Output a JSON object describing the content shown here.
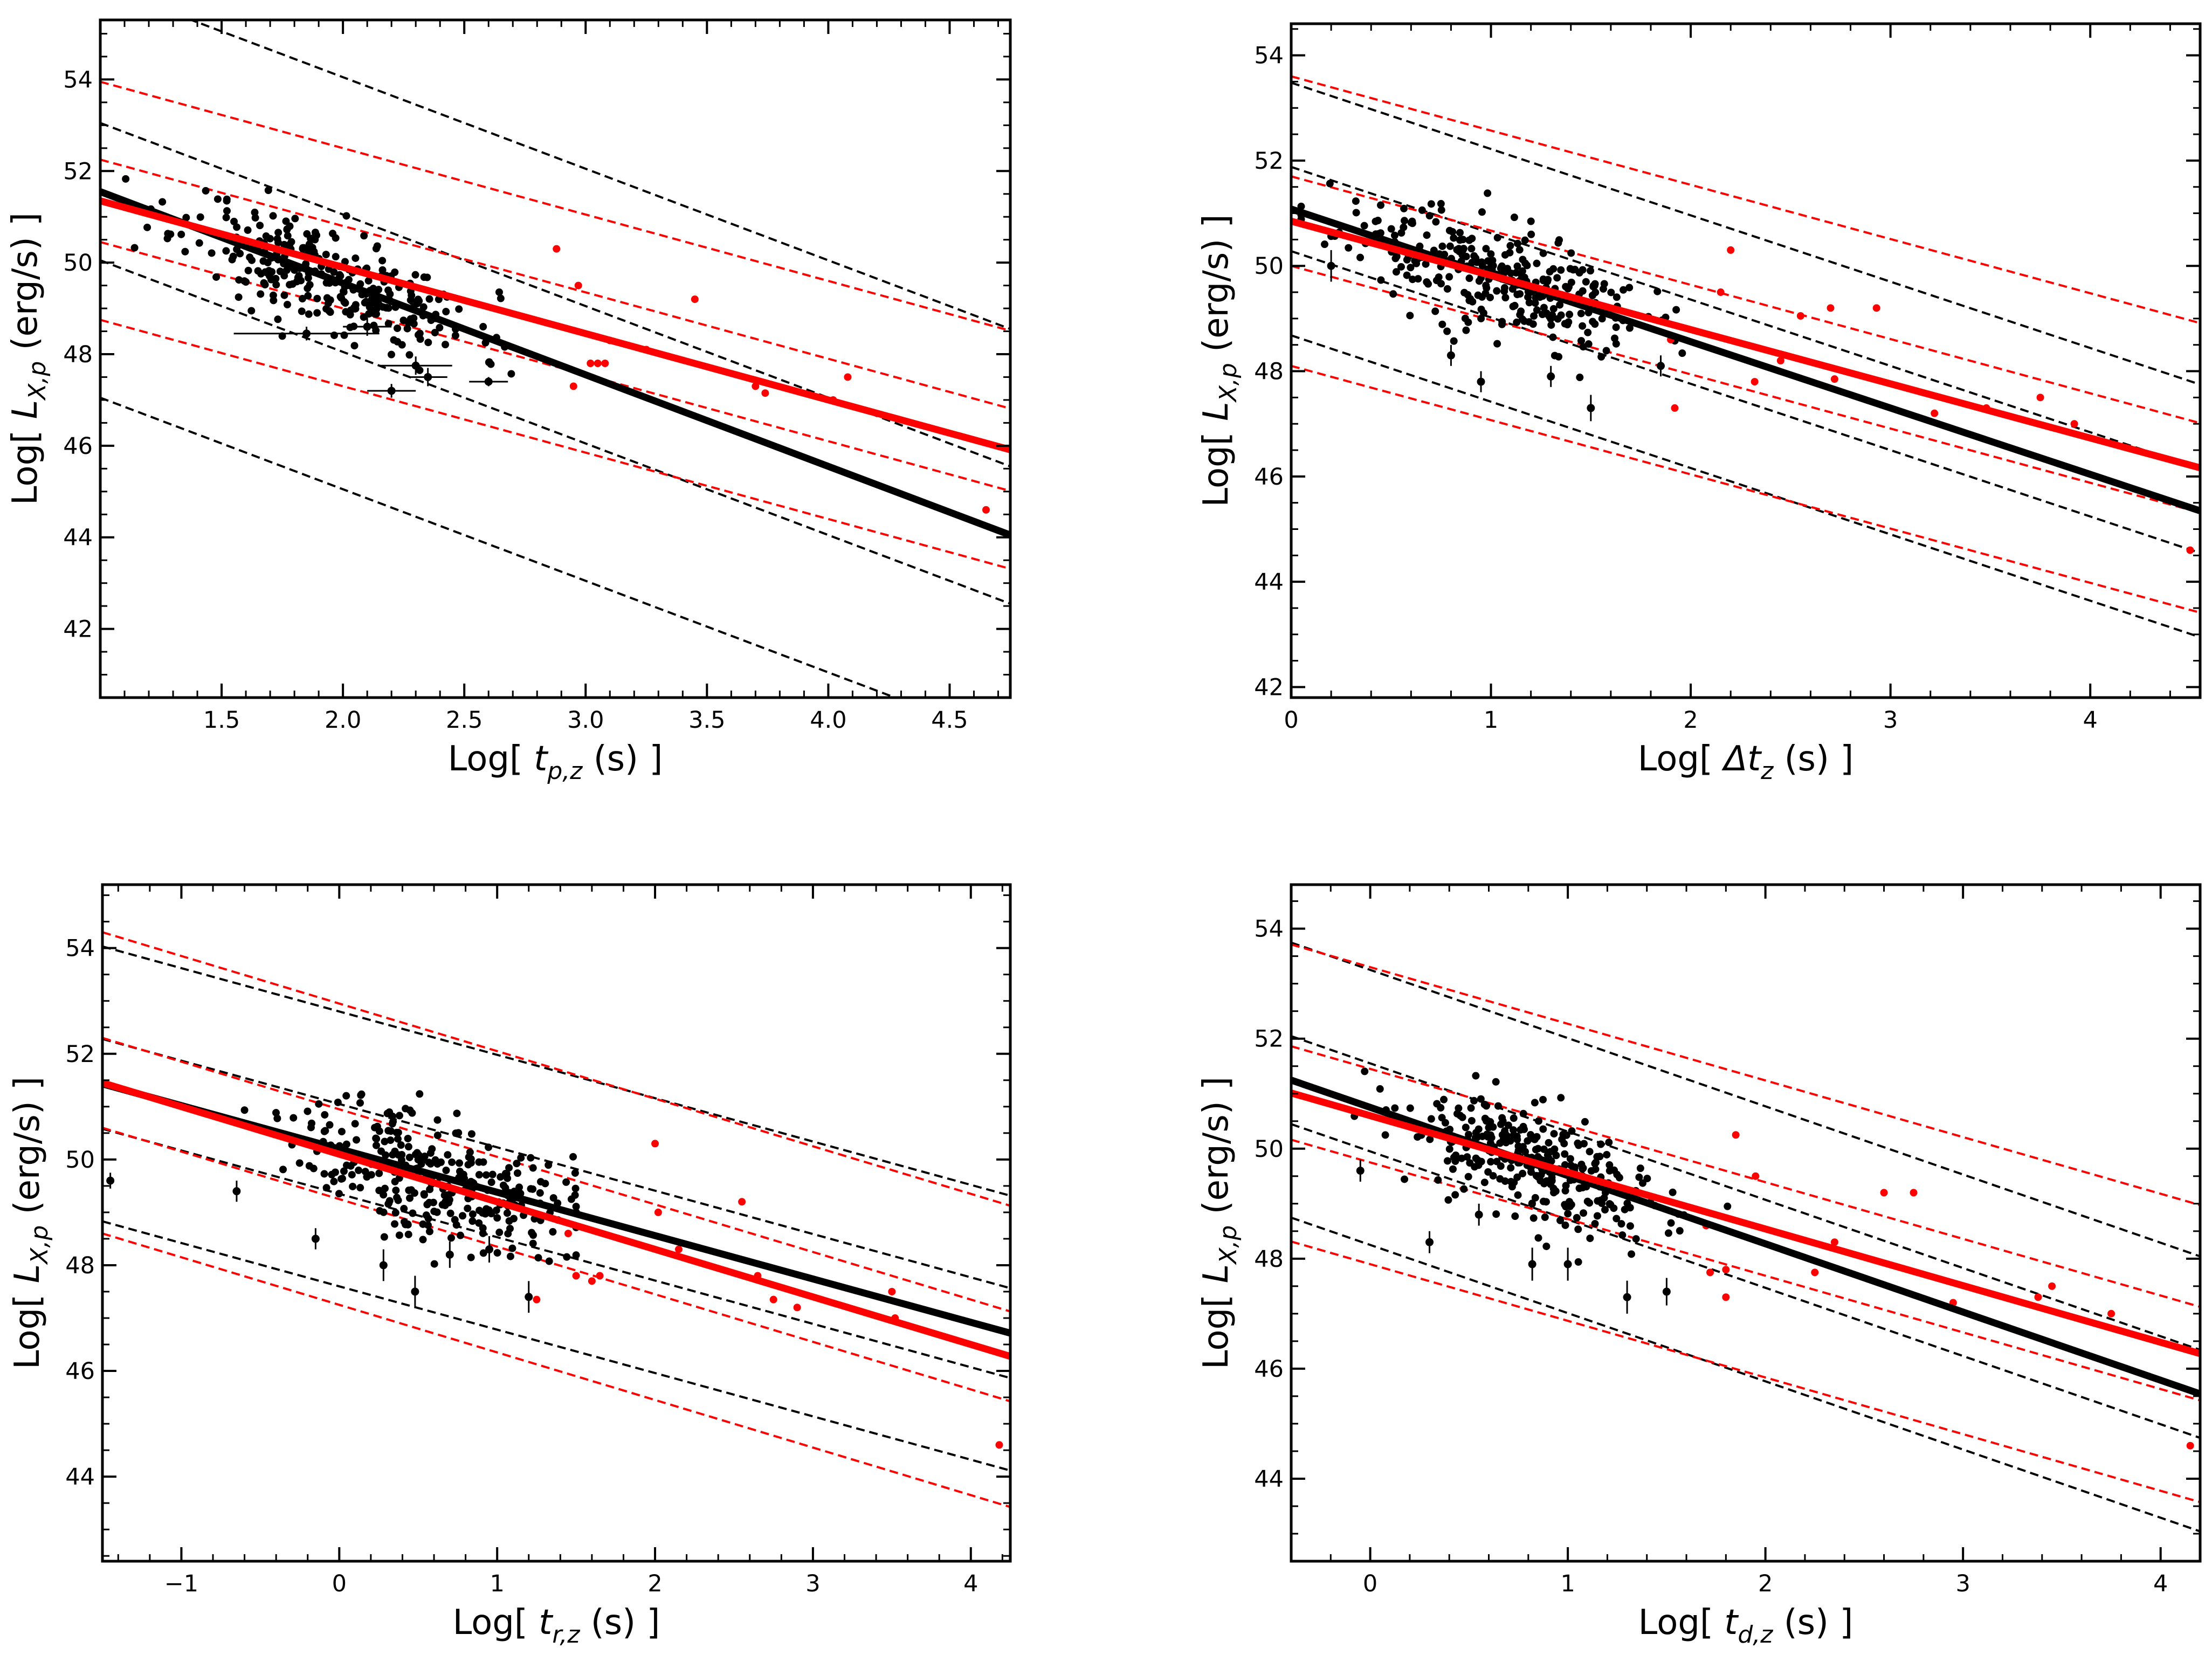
{
  "figure": {
    "background": "#ffffff"
  },
  "colors": {
    "black": "#000000",
    "red": "#ff0000"
  },
  "chart_data": [
    {
      "type": "scatter",
      "panel": "top-left",
      "xlabel_prefix": "Log[ ",
      "xlabel_var": "t",
      "xlabel_sub": "p,z",
      "xlabel_suffix": " (s) ]",
      "ylabel_prefix": "Log[ ",
      "ylabel_var": "L",
      "ylabel_sub": "X,p",
      "ylabel_suffix": " (erg/s) ]",
      "xlim": [
        1.0,
        4.75
      ],
      "ylim": [
        40.5,
        55.3
      ],
      "xticks": [
        1.5,
        2.0,
        2.5,
        3.0,
        3.5,
        4.0,
        4.5
      ],
      "xtick_labels": [
        "1.5",
        "2.0",
        "2.5",
        "3.0",
        "3.5",
        "4.0",
        "4.5"
      ],
      "yticks": [
        42,
        44,
        46,
        48,
        50,
        52,
        54
      ],
      "ytick_labels": [
        "42",
        "44",
        "46",
        "48",
        "50",
        "52",
        "54"
      ],
      "fits": [
        {
          "color": "black",
          "slope": -2.0,
          "intercept": 53.55,
          "band1": 1.5,
          "band3": 4.5
        },
        {
          "color": "red",
          "slope": -1.45,
          "intercept": 52.8,
          "band1": 0.9,
          "band3": 2.6
        }
      ],
      "cluster": {
        "x_mean": 1.95,
        "x_sd": 0.3,
        "x_min": 1.1,
        "x_max": 2.75,
        "slope": -2.0,
        "intercept": 53.55,
        "y_sd": 0.55,
        "n": 300,
        "seed": 11
      },
      "errorbar_points": [
        {
          "x": 1.85,
          "y": 48.45,
          "xerr": 0.3,
          "yerr": 0.15
        },
        {
          "x": 2.3,
          "y": 47.75,
          "xerr": 0.15,
          "yerr": 0.2
        },
        {
          "x": 2.2,
          "y": 47.2,
          "xerr": 0.1,
          "yerr": 0.15
        },
        {
          "x": 2.6,
          "y": 47.4,
          "xerr": 0.08,
          "yerr": 0.1
        },
        {
          "x": 2.1,
          "y": 48.6,
          "xerr": 0.1,
          "yerr": 0.2
        },
        {
          "x": 2.35,
          "y": 47.5,
          "xerr": 0.08,
          "yerr": 0.2
        }
      ],
      "red_points": [
        {
          "x": 2.88,
          "y": 50.3
        },
        {
          "x": 2.97,
          "y": 49.5
        },
        {
          "x": 3.02,
          "y": 47.8
        },
        {
          "x": 3.05,
          "y": 47.8
        },
        {
          "x": 3.08,
          "y": 47.8
        },
        {
          "x": 3.1,
          "y": 48.3
        },
        {
          "x": 2.95,
          "y": 47.3
        },
        {
          "x": 3.25,
          "y": 48.1
        },
        {
          "x": 3.45,
          "y": 49.2
        },
        {
          "x": 3.7,
          "y": 47.3
        },
        {
          "x": 3.74,
          "y": 47.15
        },
        {
          "x": 4.02,
          "y": 47.0
        },
        {
          "x": 4.08,
          "y": 47.5
        },
        {
          "x": 4.65,
          "y": 44.6
        }
      ]
    },
    {
      "type": "scatter",
      "panel": "top-right",
      "xlabel_prefix": "Log[ ",
      "xlabel_var": "Δt",
      "xlabel_sub": "z",
      "xlabel_suffix": " (s) ]",
      "ylabel_prefix": "Log[ ",
      "ylabel_var": "L",
      "ylabel_sub": "X,p",
      "ylabel_suffix": " (erg/s) ]",
      "xlim": [
        0.0,
        4.55
      ],
      "ylim": [
        41.8,
        54.6
      ],
      "xticks": [
        0,
        1,
        2,
        3,
        4
      ],
      "xtick_labels": [
        "0",
        "1",
        "2",
        "3",
        "4"
      ],
      "yticks": [
        42,
        44,
        46,
        48,
        50,
        52,
        54
      ],
      "ytick_labels": [
        "42",
        "44",
        "46",
        "48",
        "50",
        "52",
        "54"
      ],
      "fits": [
        {
          "color": "black",
          "slope": -1.26,
          "intercept": 51.08,
          "band1": 0.8,
          "band3": 2.4
        },
        {
          "color": "red",
          "slope": -1.03,
          "intercept": 50.85,
          "band1": 0.85,
          "band3": 2.75
        }
      ],
      "cluster": {
        "x_mean": 1.0,
        "x_sd": 0.38,
        "x_min": 0.05,
        "x_max": 2.0,
        "slope": -1.26,
        "intercept": 51.08,
        "y_sd": 0.5,
        "n": 300,
        "seed": 23
      },
      "errorbar_points": [
        {
          "x": 0.2,
          "y": 50.0,
          "xerr": 0.0,
          "yerr": 0.3
        },
        {
          "x": 1.5,
          "y": 47.3,
          "xerr": 0.0,
          "yerr": 0.25
        },
        {
          "x": 0.95,
          "y": 47.8,
          "xerr": 0.0,
          "yerr": 0.2
        },
        {
          "x": 1.3,
          "y": 47.9,
          "xerr": 0.0,
          "yerr": 0.2
        },
        {
          "x": 0.8,
          "y": 48.3,
          "xerr": 0.0,
          "yerr": 0.2
        },
        {
          "x": 1.85,
          "y": 48.1,
          "xerr": 0.0,
          "yerr": 0.2
        }
      ],
      "red_points": [
        {
          "x": 1.9,
          "y": 48.6
        },
        {
          "x": 1.92,
          "y": 47.3
        },
        {
          "x": 2.15,
          "y": 49.5
        },
        {
          "x": 2.2,
          "y": 50.3
        },
        {
          "x": 2.32,
          "y": 47.8
        },
        {
          "x": 2.45,
          "y": 48.2
        },
        {
          "x": 2.55,
          "y": 49.05
        },
        {
          "x": 2.7,
          "y": 49.2
        },
        {
          "x": 2.72,
          "y": 47.85
        },
        {
          "x": 2.93,
          "y": 49.2
        },
        {
          "x": 3.22,
          "y": 47.2
        },
        {
          "x": 3.48,
          "y": 47.3
        },
        {
          "x": 3.75,
          "y": 47.5
        },
        {
          "x": 3.92,
          "y": 47.0
        },
        {
          "x": 4.5,
          "y": 44.6
        }
      ]
    },
    {
      "type": "scatter",
      "panel": "bottom-left",
      "xlabel_prefix": "Log[ ",
      "xlabel_var": "t",
      "xlabel_sub": "r,z",
      "xlabel_suffix": " (s) ]",
      "ylabel_prefix": "Log[ ",
      "ylabel_var": "L",
      "ylabel_sub": "X,p",
      "ylabel_suffix": " (erg/s) ]",
      "xlim": [
        -1.5,
        4.25
      ],
      "ylim": [
        42.4,
        55.2
      ],
      "xticks": [
        -1,
        0,
        1,
        2,
        3,
        4
      ],
      "xtick_labels": [
        "−1",
        "0",
        "1",
        "2",
        "3",
        "4"
      ],
      "yticks": [
        44,
        46,
        48,
        50,
        52,
        54
      ],
      "ytick_labels": [
        "44",
        "46",
        "48",
        "50",
        "52",
        "54"
      ],
      "fits": [
        {
          "color": "black",
          "slope": -0.82,
          "intercept": 50.2,
          "band1": 0.85,
          "band3": 2.6
        },
        {
          "color": "red",
          "slope": -0.9,
          "intercept": 50.1,
          "band1": 0.85,
          "band3": 2.85
        }
      ],
      "cluster": {
        "x_mean": 0.6,
        "x_sd": 0.42,
        "x_min": -0.6,
        "x_max": 1.5,
        "slope": -0.82,
        "intercept": 50.2,
        "y_sd": 0.6,
        "n": 300,
        "seed": 37
      },
      "errorbar_points": [
        {
          "x": -1.45,
          "y": 49.6,
          "xerr": 0.0,
          "yerr": 0.15
        },
        {
          "x": -0.65,
          "y": 49.4,
          "xerr": 0.0,
          "yerr": 0.2
        },
        {
          "x": 0.28,
          "y": 48.0,
          "xerr": 0.0,
          "yerr": 0.3
        },
        {
          "x": -0.15,
          "y": 48.5,
          "xerr": 0.0,
          "yerr": 0.2
        },
        {
          "x": 0.48,
          "y": 47.5,
          "xerr": 0.0,
          "yerr": 0.3
        },
        {
          "x": 0.95,
          "y": 48.3,
          "xerr": 0.0,
          "yerr": 0.25
        },
        {
          "x": 1.2,
          "y": 47.4,
          "xerr": 0.0,
          "yerr": 0.3
        },
        {
          "x": 0.7,
          "y": 48.2,
          "xerr": 0.0,
          "yerr": 0.25
        }
      ],
      "red_points": [
        {
          "x": 1.25,
          "y": 47.35
        },
        {
          "x": 1.45,
          "y": 48.6
        },
        {
          "x": 1.5,
          "y": 47.8
        },
        {
          "x": 1.6,
          "y": 47.7
        },
        {
          "x": 1.65,
          "y": 47.8
        },
        {
          "x": 2.0,
          "y": 50.3
        },
        {
          "x": 2.02,
          "y": 49.0
        },
        {
          "x": 2.15,
          "y": 48.3
        },
        {
          "x": 2.55,
          "y": 49.2
        },
        {
          "x": 2.65,
          "y": 47.8
        },
        {
          "x": 2.75,
          "y": 47.35
        },
        {
          "x": 2.9,
          "y": 47.2
        },
        {
          "x": 3.5,
          "y": 47.5
        },
        {
          "x": 3.52,
          "y": 47.0
        },
        {
          "x": 4.18,
          "y": 44.6
        }
      ]
    },
    {
      "type": "scatter",
      "panel": "bottom-right",
      "xlabel_prefix": "Log[ ",
      "xlabel_var": "t",
      "xlabel_sub": "d,z",
      "xlabel_suffix": " (s) ]",
      "ylabel_prefix": "Log[ ",
      "ylabel_var": "L",
      "ylabel_sub": "X,p",
      "ylabel_suffix": " (erg/s) ]",
      "xlim": [
        -0.4,
        4.2
      ],
      "ylim": [
        42.5,
        54.8
      ],
      "xticks": [
        0,
        1,
        2,
        3,
        4
      ],
      "xtick_labels": [
        "0",
        "1",
        "2",
        "3",
        "4"
      ],
      "yticks": [
        44,
        46,
        48,
        50,
        52,
        54
      ],
      "ytick_labels": [
        "44",
        "46",
        "48",
        "50",
        "52",
        "54"
      ],
      "fits": [
        {
          "color": "black",
          "slope": -1.24,
          "intercept": 50.75,
          "band1": 0.8,
          "band3": 2.5
        },
        {
          "color": "red",
          "slope": -1.03,
          "intercept": 50.6,
          "band1": 0.85,
          "band3": 2.7
        }
      ],
      "cluster": {
        "x_mean": 0.85,
        "x_sd": 0.35,
        "x_min": -0.3,
        "x_max": 1.85,
        "slope": -1.24,
        "intercept": 50.75,
        "y_sd": 0.5,
        "n": 300,
        "seed": 53
      },
      "errorbar_points": [
        {
          "x": -0.05,
          "y": 49.6,
          "xerr": 0.0,
          "yerr": 0.2
        },
        {
          "x": 0.3,
          "y": 48.3,
          "xerr": 0.0,
          "yerr": 0.2
        },
        {
          "x": 0.82,
          "y": 47.9,
          "xerr": 0.0,
          "yerr": 0.3
        },
        {
          "x": 1.0,
          "y": 47.9,
          "xerr": 0.0,
          "yerr": 0.3
        },
        {
          "x": 1.3,
          "y": 47.3,
          "xerr": 0.0,
          "yerr": 0.3
        },
        {
          "x": 1.5,
          "y": 47.4,
          "xerr": 0.0,
          "yerr": 0.25
        },
        {
          "x": 0.55,
          "y": 48.8,
          "xerr": 0.0,
          "yerr": 0.2
        }
      ],
      "red_points": [
        {
          "x": 1.7,
          "y": 48.6
        },
        {
          "x": 1.8,
          "y": 47.8
        },
        {
          "x": 1.8,
          "y": 47.3
        },
        {
          "x": 1.72,
          "y": 47.75
        },
        {
          "x": 1.85,
          "y": 50.25
        },
        {
          "x": 1.95,
          "y": 49.5
        },
        {
          "x": 2.25,
          "y": 47.75
        },
        {
          "x": 2.35,
          "y": 48.3
        },
        {
          "x": 2.6,
          "y": 49.2
        },
        {
          "x": 2.75,
          "y": 49.2
        },
        {
          "x": 2.95,
          "y": 47.2
        },
        {
          "x": 3.38,
          "y": 47.3
        },
        {
          "x": 3.45,
          "y": 47.5
        },
        {
          "x": 3.75,
          "y": 47.0
        },
        {
          "x": 4.15,
          "y": 44.6
        }
      ]
    }
  ]
}
